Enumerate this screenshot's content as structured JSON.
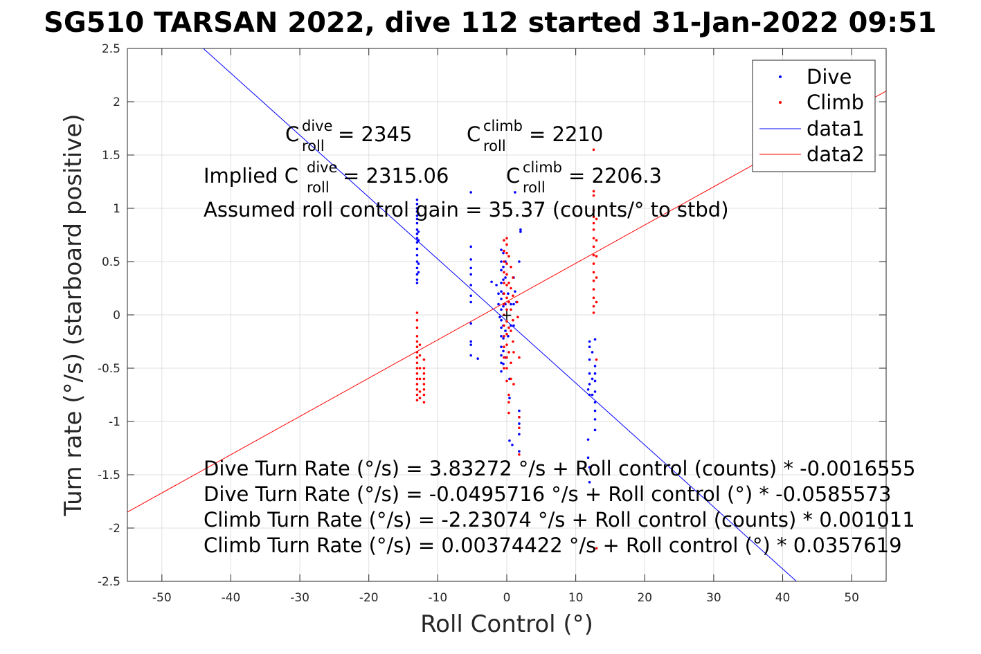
{
  "chart_data": {
    "type": "scatter",
    "title": "SG510 TARSAN 2022, dive 112 started 31-Jan-2022 09:51",
    "xlabel": "Roll Control (°)",
    "ylabel": "Turn rate (°/s) (starboard positive)",
    "xlim": [
      -55,
      55
    ],
    "ylim": [
      -2.5,
      2.5
    ],
    "grid": true,
    "legend_placement": "top-right",
    "x_ticks": [
      "-50",
      "-40",
      "-30",
      "-20",
      "-10",
      "0",
      "10",
      "20",
      "30",
      "40",
      "50"
    ],
    "y_ticks": [
      "2.5",
      "2",
      "1.5",
      "1",
      "0.5",
      "0",
      "-0.5",
      "-1",
      "-1.5",
      "-2",
      "-2.5"
    ],
    "legend": [
      "Dive",
      "Climb",
      "data1",
      "data2"
    ],
    "colors": {
      "dive": "#0000ff",
      "climb": "#ff0000",
      "axes": "#262626",
      "grid": "#dfdfdf"
    },
    "series": [
      {
        "name": "Dive",
        "marker": "dot",
        "points": [
          [
            -13,
            1.08
          ],
          [
            -13,
            1.04
          ],
          [
            -13,
            1.0
          ],
          [
            -13,
            0.97
          ],
          [
            -13,
            0.93
          ],
          [
            -13,
            0.9
          ],
          [
            -13,
            0.86
          ],
          [
            -13,
            0.8
          ],
          [
            -13,
            0.76
          ],
          [
            -13,
            0.72
          ],
          [
            -13,
            0.68
          ],
          [
            -13,
            0.62
          ],
          [
            -13,
            0.56
          ],
          [
            -13,
            0.5
          ],
          [
            -13,
            0.44
          ],
          [
            -13,
            0.38
          ],
          [
            -13,
            0.33
          ],
          [
            -13,
            0.3
          ],
          [
            -12.8,
            0.95
          ],
          [
            -12.8,
            0.78
          ],
          [
            -12.8,
            0.7
          ],
          [
            -12.8,
            0.48
          ],
          [
            -12.8,
            0.4
          ],
          [
            -5.2,
            1.15
          ],
          [
            -5.2,
            0.64
          ],
          [
            -5.2,
            0.52
          ],
          [
            -5.2,
            0.44
          ],
          [
            -5.2,
            0.38
          ],
          [
            -5.2,
            0.28
          ],
          [
            -5.2,
            0.18
          ],
          [
            -5.2,
            0.12
          ],
          [
            -5.2,
            -0.08
          ],
          [
            -5.2,
            -0.25
          ],
          [
            -5.2,
            -0.28
          ],
          [
            -5.2,
            -0.38
          ],
          [
            -4.2,
            -0.41
          ],
          [
            -2.2,
            0.31
          ],
          [
            -1.5,
            0.28
          ],
          [
            -1.2,
            0.2
          ],
          [
            -1.2,
            0.1
          ],
          [
            -1.0,
            -0.02
          ],
          [
            -0.8,
            0.61
          ],
          [
            -0.8,
            0.5
          ],
          [
            -0.8,
            0.42
          ],
          [
            -0.8,
            0.3
          ],
          [
            -0.8,
            0.22
          ],
          [
            -0.8,
            0.15
          ],
          [
            -0.8,
            0.05
          ],
          [
            -0.8,
            -0.05
          ],
          [
            -0.8,
            -0.12
          ],
          [
            -0.8,
            -0.2
          ],
          [
            -0.8,
            -0.3
          ],
          [
            -0.8,
            -0.38
          ],
          [
            -0.8,
            -0.45
          ],
          [
            -0.8,
            -0.53
          ],
          [
            -0.5,
            0.58
          ],
          [
            -0.5,
            0.45
          ],
          [
            -0.5,
            0.33
          ],
          [
            -0.5,
            0.2
          ],
          [
            -0.5,
            0.08
          ],
          [
            -0.5,
            -0.1
          ],
          [
            -0.5,
            -0.22
          ],
          [
            -0.5,
            -0.34
          ],
          [
            -0.5,
            -0.46
          ],
          [
            -0.2,
            0.5
          ],
          [
            -0.2,
            0.35
          ],
          [
            -0.2,
            0.1
          ],
          [
            -0.2,
            -0.15
          ],
          [
            -0.2,
            -0.4
          ],
          [
            0.2,
            0.2
          ],
          [
            0.2,
            -0.2
          ],
          [
            0.4,
            -0.6
          ],
          [
            0.4,
            -0.78
          ],
          [
            0.4,
            -1.18
          ],
          [
            0.6,
            0.1
          ],
          [
            0.6,
            -0.1
          ],
          [
            0.8,
            -1.22
          ],
          [
            1.0,
            0.35
          ],
          [
            1.0,
            0.1
          ],
          [
            1.0,
            -0.1
          ],
          [
            1.2,
            1.15
          ],
          [
            1.2,
            0.22
          ],
          [
            1.4,
            0.12
          ],
          [
            1.8,
            0.5
          ],
          [
            1.8,
            -0.9
          ],
          [
            1.8,
            -0.96
          ],
          [
            1.8,
            -1.02
          ],
          [
            1.8,
            -1.12
          ],
          [
            1.8,
            -1.28
          ],
          [
            2.0,
            0.8
          ],
          [
            2.0,
            0.78
          ],
          [
            11.8,
            -1.17
          ],
          [
            11.8,
            -1.34
          ],
          [
            11.8,
            -0.7
          ],
          [
            12.0,
            -0.25
          ],
          [
            12.0,
            -0.3
          ],
          [
            12.0,
            -0.42
          ],
          [
            12.0,
            -0.55
          ],
          [
            12.0,
            -0.65
          ],
          [
            12.0,
            -0.75
          ],
          [
            12.0,
            -1.43
          ],
          [
            12.0,
            -1.57
          ],
          [
            12.4,
            -0.35
          ],
          [
            12.4,
            -0.6
          ],
          [
            12.4,
            -0.75
          ],
          [
            12.8,
            -0.23
          ],
          [
            12.8,
            -0.48
          ],
          [
            12.8,
            -0.55
          ],
          [
            12.8,
            -0.62
          ],
          [
            12.8,
            -0.72
          ],
          [
            12.8,
            -0.82
          ],
          [
            12.8,
            -0.9
          ],
          [
            12.8,
            -0.98
          ],
          [
            12.8,
            -1.08
          ]
        ]
      },
      {
        "name": "Climb",
        "marker": "dot",
        "points": [
          [
            -13,
            0.02
          ],
          [
            -13,
            -0.05
          ],
          [
            -13,
            -0.12
          ],
          [
            -13,
            -0.2
          ],
          [
            -13,
            -0.25
          ],
          [
            -13,
            -0.3
          ],
          [
            -13,
            -0.35
          ],
          [
            -13,
            -0.4
          ],
          [
            -13,
            -0.45
          ],
          [
            -13,
            -0.5
          ],
          [
            -13,
            -0.55
          ],
          [
            -13,
            -0.6
          ],
          [
            -13,
            -0.65
          ],
          [
            -13,
            -0.7
          ],
          [
            -13,
            -0.75
          ],
          [
            -13,
            -0.8
          ],
          [
            -12.6,
            -0.28
          ],
          [
            -12.6,
            -0.38
          ],
          [
            -12.6,
            -0.5
          ],
          [
            -12.6,
            -0.6
          ],
          [
            -12.6,
            -0.72
          ],
          [
            -12.6,
            -0.78
          ],
          [
            -12,
            -0.42
          ],
          [
            -12,
            -0.5
          ],
          [
            -12,
            -0.55
          ],
          [
            -12,
            -0.6
          ],
          [
            -12,
            -0.65
          ],
          [
            -12,
            -0.7
          ],
          [
            -12,
            -0.75
          ],
          [
            -12,
            -0.82
          ],
          [
            -0.4,
            0.7
          ],
          [
            -0.4,
            0.6
          ],
          [
            -0.4,
            0.5
          ],
          [
            -0.4,
            0.4
          ],
          [
            -0.4,
            0.3
          ],
          [
            -0.4,
            0.2
          ],
          [
            -0.4,
            0.1
          ],
          [
            -0.4,
            0.0
          ],
          [
            -0.4,
            -0.1
          ],
          [
            -0.4,
            -0.2
          ],
          [
            -0.4,
            -0.3
          ],
          [
            -0.4,
            -0.4
          ],
          [
            -0.4,
            -0.5
          ],
          [
            0.0,
            0.72
          ],
          [
            0.0,
            0.66
          ],
          [
            0.0,
            0.58
          ],
          [
            0.0,
            0.48
          ],
          [
            0.0,
            0.38
          ],
          [
            0.0,
            0.28
          ],
          [
            0.0,
            0.16
          ],
          [
            0.0,
            0.05
          ],
          [
            0.0,
            -0.06
          ],
          [
            0.0,
            -0.18
          ],
          [
            0.0,
            -0.28
          ],
          [
            0.0,
            -0.4
          ],
          [
            0.0,
            -0.5
          ],
          [
            0.0,
            -0.62
          ],
          [
            0.3,
            0.55
          ],
          [
            0.3,
            0.3
          ],
          [
            0.3,
            0.12
          ],
          [
            0.3,
            -0.12
          ],
          [
            0.3,
            -0.35
          ],
          [
            0.3,
            -0.75
          ],
          [
            0.3,
            -0.82
          ],
          [
            0.3,
            -0.92
          ],
          [
            0.6,
            0.45
          ],
          [
            0.6,
            0.25
          ],
          [
            0.6,
            0.05
          ],
          [
            0.6,
            -0.15
          ],
          [
            0.6,
            -0.45
          ],
          [
            0.6,
            -0.6
          ],
          [
            0.9,
            0.35
          ],
          [
            0.9,
            0.18
          ],
          [
            0.9,
            -0.05
          ],
          [
            0.9,
            -0.25
          ],
          [
            1.0,
            -0.35
          ],
          [
            1.0,
            -0.65
          ],
          [
            1.5,
            0.12
          ],
          [
            1.6,
            -0.02
          ],
          [
            1.8,
            -0.4
          ],
          [
            1.8,
            -0.96
          ],
          [
            1.8,
            -1.06
          ],
          [
            1.8,
            -1.31
          ],
          [
            12.6,
            1.55
          ],
          [
            12.6,
            1.16
          ],
          [
            12.6,
            1.12
          ],
          [
            12.6,
            0.98
          ],
          [
            12.6,
            0.92
          ],
          [
            12.6,
            0.86
          ],
          [
            12.6,
            0.8
          ],
          [
            12.6,
            0.72
          ],
          [
            12.6,
            0.64
          ],
          [
            12.6,
            0.56
          ],
          [
            12.6,
            0.48
          ],
          [
            12.6,
            0.4
          ],
          [
            12.6,
            0.32
          ],
          [
            12.6,
            0.24
          ],
          [
            12.6,
            0.16
          ],
          [
            12.6,
            0.08
          ],
          [
            12.6,
            0.02
          ],
          [
            13.0,
            0.9
          ],
          [
            13.0,
            0.7
          ],
          [
            13.0,
            0.55
          ],
          [
            13.0,
            0.35
          ],
          [
            13.0,
            0.12
          ],
          [
            13.0,
            -0.42
          ],
          [
            13.0,
            -2.19
          ]
        ]
      }
    ],
    "lines": [
      {
        "name": "data1",
        "color": "#0000ff",
        "x": [
          -44,
          42
        ],
        "y": [
          2.5,
          -2.5
        ]
      },
      {
        "name": "data2",
        "color": "#ff0000",
        "x": [
          -55,
          55
        ],
        "y": [
          -1.85,
          2.1
        ]
      }
    ],
    "annotations": {
      "c_dive_prefix": "C",
      "c_dive_sup": "dive",
      "c_dive_sub": "roll",
      "c_dive_value": " = 2345",
      "c_climb_prefix": "C",
      "c_climb_sup": "climb",
      "c_climb_sub": "roll",
      "c_climb_value": " = 2210",
      "implied_prefix": "Implied C",
      "implied_dive_sup": "dive",
      "implied_dive_sub": "roll",
      "implied_dive_value": " = 2315.06",
      "implied_climb_prefix": "C",
      "implied_climb_sup": "climb",
      "implied_climb_sub": "roll",
      "implied_climb_value": " = 2206.3",
      "gain_line": "Assumed roll control gain = 35.37 (counts/° to stbd)",
      "fit_lines": [
        "Dive Turn Rate (°/s) = 3.83272 °/s + Roll control (counts) * -0.0016555",
        "Dive Turn Rate (°/s) = -0.0495716 °/s + Roll control (°) * -0.0585573",
        "Climb Turn Rate (°/s) = -2.23074 °/s + Roll control (counts) * 0.001011",
        "Climb Turn Rate (°/s) = 0.00374422 °/s + Roll control (°) * 0.0357619"
      ],
      "origin_marker": "+"
    }
  }
}
